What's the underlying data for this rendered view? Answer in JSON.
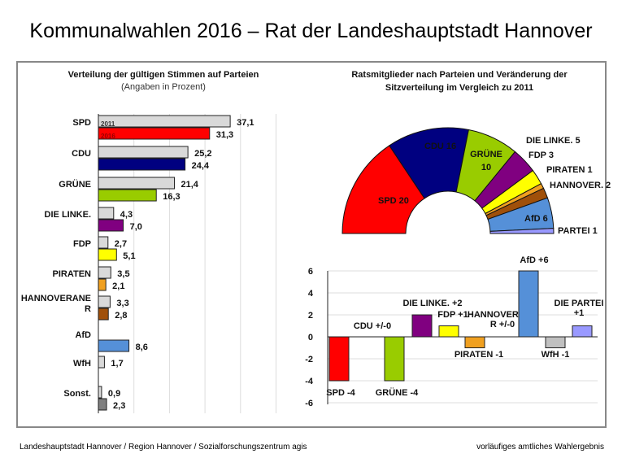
{
  "title": "Kommunalwahlen 2016 – Rat der Landeshauptstadt Hannover",
  "footer_left": "Landeshauptstadt Hannover / Region Hannover / Sozialforschungszentrum agis",
  "footer_right": "vorläufiges amtliches Wahlergebnis",
  "chart_data": [
    {
      "type": "bar",
      "orientation": "horizontal",
      "title": "Verteilung der gültigen Stimmen auf Parteien",
      "subtitle": "(Angaben in Prozent)",
      "categories": [
        "SPD",
        "CDU",
        "GRÜNE",
        "DIE LINKE.",
        "FDP",
        "PIRATEN",
        "HANNOVERANE R",
        "AfD",
        "WfH",
        "Sonst."
      ],
      "series": [
        {
          "name": "2011",
          "color": "#d9d9d9",
          "values": [
            37.1,
            25.2,
            21.4,
            4.3,
            2.7,
            3.5,
            3.3,
            null,
            1.7,
            0.9
          ],
          "labels": [
            "37,1",
            "25,2",
            "21,4",
            "4,3",
            "2,7",
            "3,5",
            "3,3",
            "",
            "1,7",
            "0,9"
          ]
        },
        {
          "name": "2016",
          "colors": [
            "#ff0000",
            "#000080",
            "#99cc00",
            "#800080",
            "#ffff00",
            "#f0a020",
            "#a0500a",
            "#5590d8",
            null,
            "#808080"
          ],
          "values": [
            31.3,
            24.4,
            16.3,
            7.0,
            5.1,
            2.1,
            2.8,
            8.6,
            null,
            2.3
          ],
          "labels": [
            "31,3",
            "24,4",
            "16,3",
            "7,0",
            "5,1",
            "2,1",
            "2,8",
            "8,6",
            "",
            "2,3"
          ]
        }
      ],
      "xlim": [
        0,
        50
      ],
      "grid": true
    },
    {
      "type": "pie",
      "variant": "semicircle",
      "title": "Ratsmitglieder nach Parteien und Veränderung der Sitzverteilung im Vergleich zu 2011",
      "slices": [
        {
          "label": "SPD 20",
          "value": 20,
          "color": "#ff0000"
        },
        {
          "label": "CDU 16",
          "value": 16,
          "color": "#000080"
        },
        {
          "label": "GRÜNE 10",
          "value": 10,
          "color": "#99cc00"
        },
        {
          "label": "DIE LINKE. 5",
          "value": 5,
          "color": "#800080"
        },
        {
          "label": "FDP 3",
          "value": 3,
          "color": "#ffff00"
        },
        {
          "label": "PIRATEN 1",
          "value": 1,
          "color": "#f0a020"
        },
        {
          "label": "HANNOVER. 2",
          "value": 2,
          "color": "#a0500a"
        },
        {
          "label": "AfD 6",
          "value": 6,
          "color": "#5590d8"
        },
        {
          "label": "PARTEI 1",
          "value": 1,
          "color": "#9999ff"
        }
      ]
    },
    {
      "type": "bar",
      "categories": [
        "SPD",
        "CDU",
        "GRÜNE",
        "DIE LINKE.",
        "FDP",
        "PIRATEN",
        "HANNOVERANER",
        "AfD",
        "WfH",
        "DIE PARTEI"
      ],
      "values": [
        -4,
        0,
        -4,
        2,
        1,
        -1,
        0,
        6,
        -1,
        1
      ],
      "labels": [
        "SPD -4",
        "CDU +/-0",
        "GRÜNE -4",
        "DIE LINKE. +2",
        "FDP +1",
        "PIRATEN -1",
        "HANNOVERANE R +/-0",
        "AfD +6",
        "WfH -1",
        "DIE PARTEI +1"
      ],
      "colors": [
        "#ff0000",
        "#ffffff",
        "#99cc00",
        "#800080",
        "#ffff00",
        "#f0a020",
        "#ffffff",
        "#5590d8",
        "#c0c0c0",
        "#9999ff"
      ],
      "ylim": [
        -6,
        6
      ],
      "yticks": [
        "-6",
        "-4",
        "-2",
        "0",
        "2",
        "4",
        "6"
      ],
      "grid": true
    }
  ]
}
